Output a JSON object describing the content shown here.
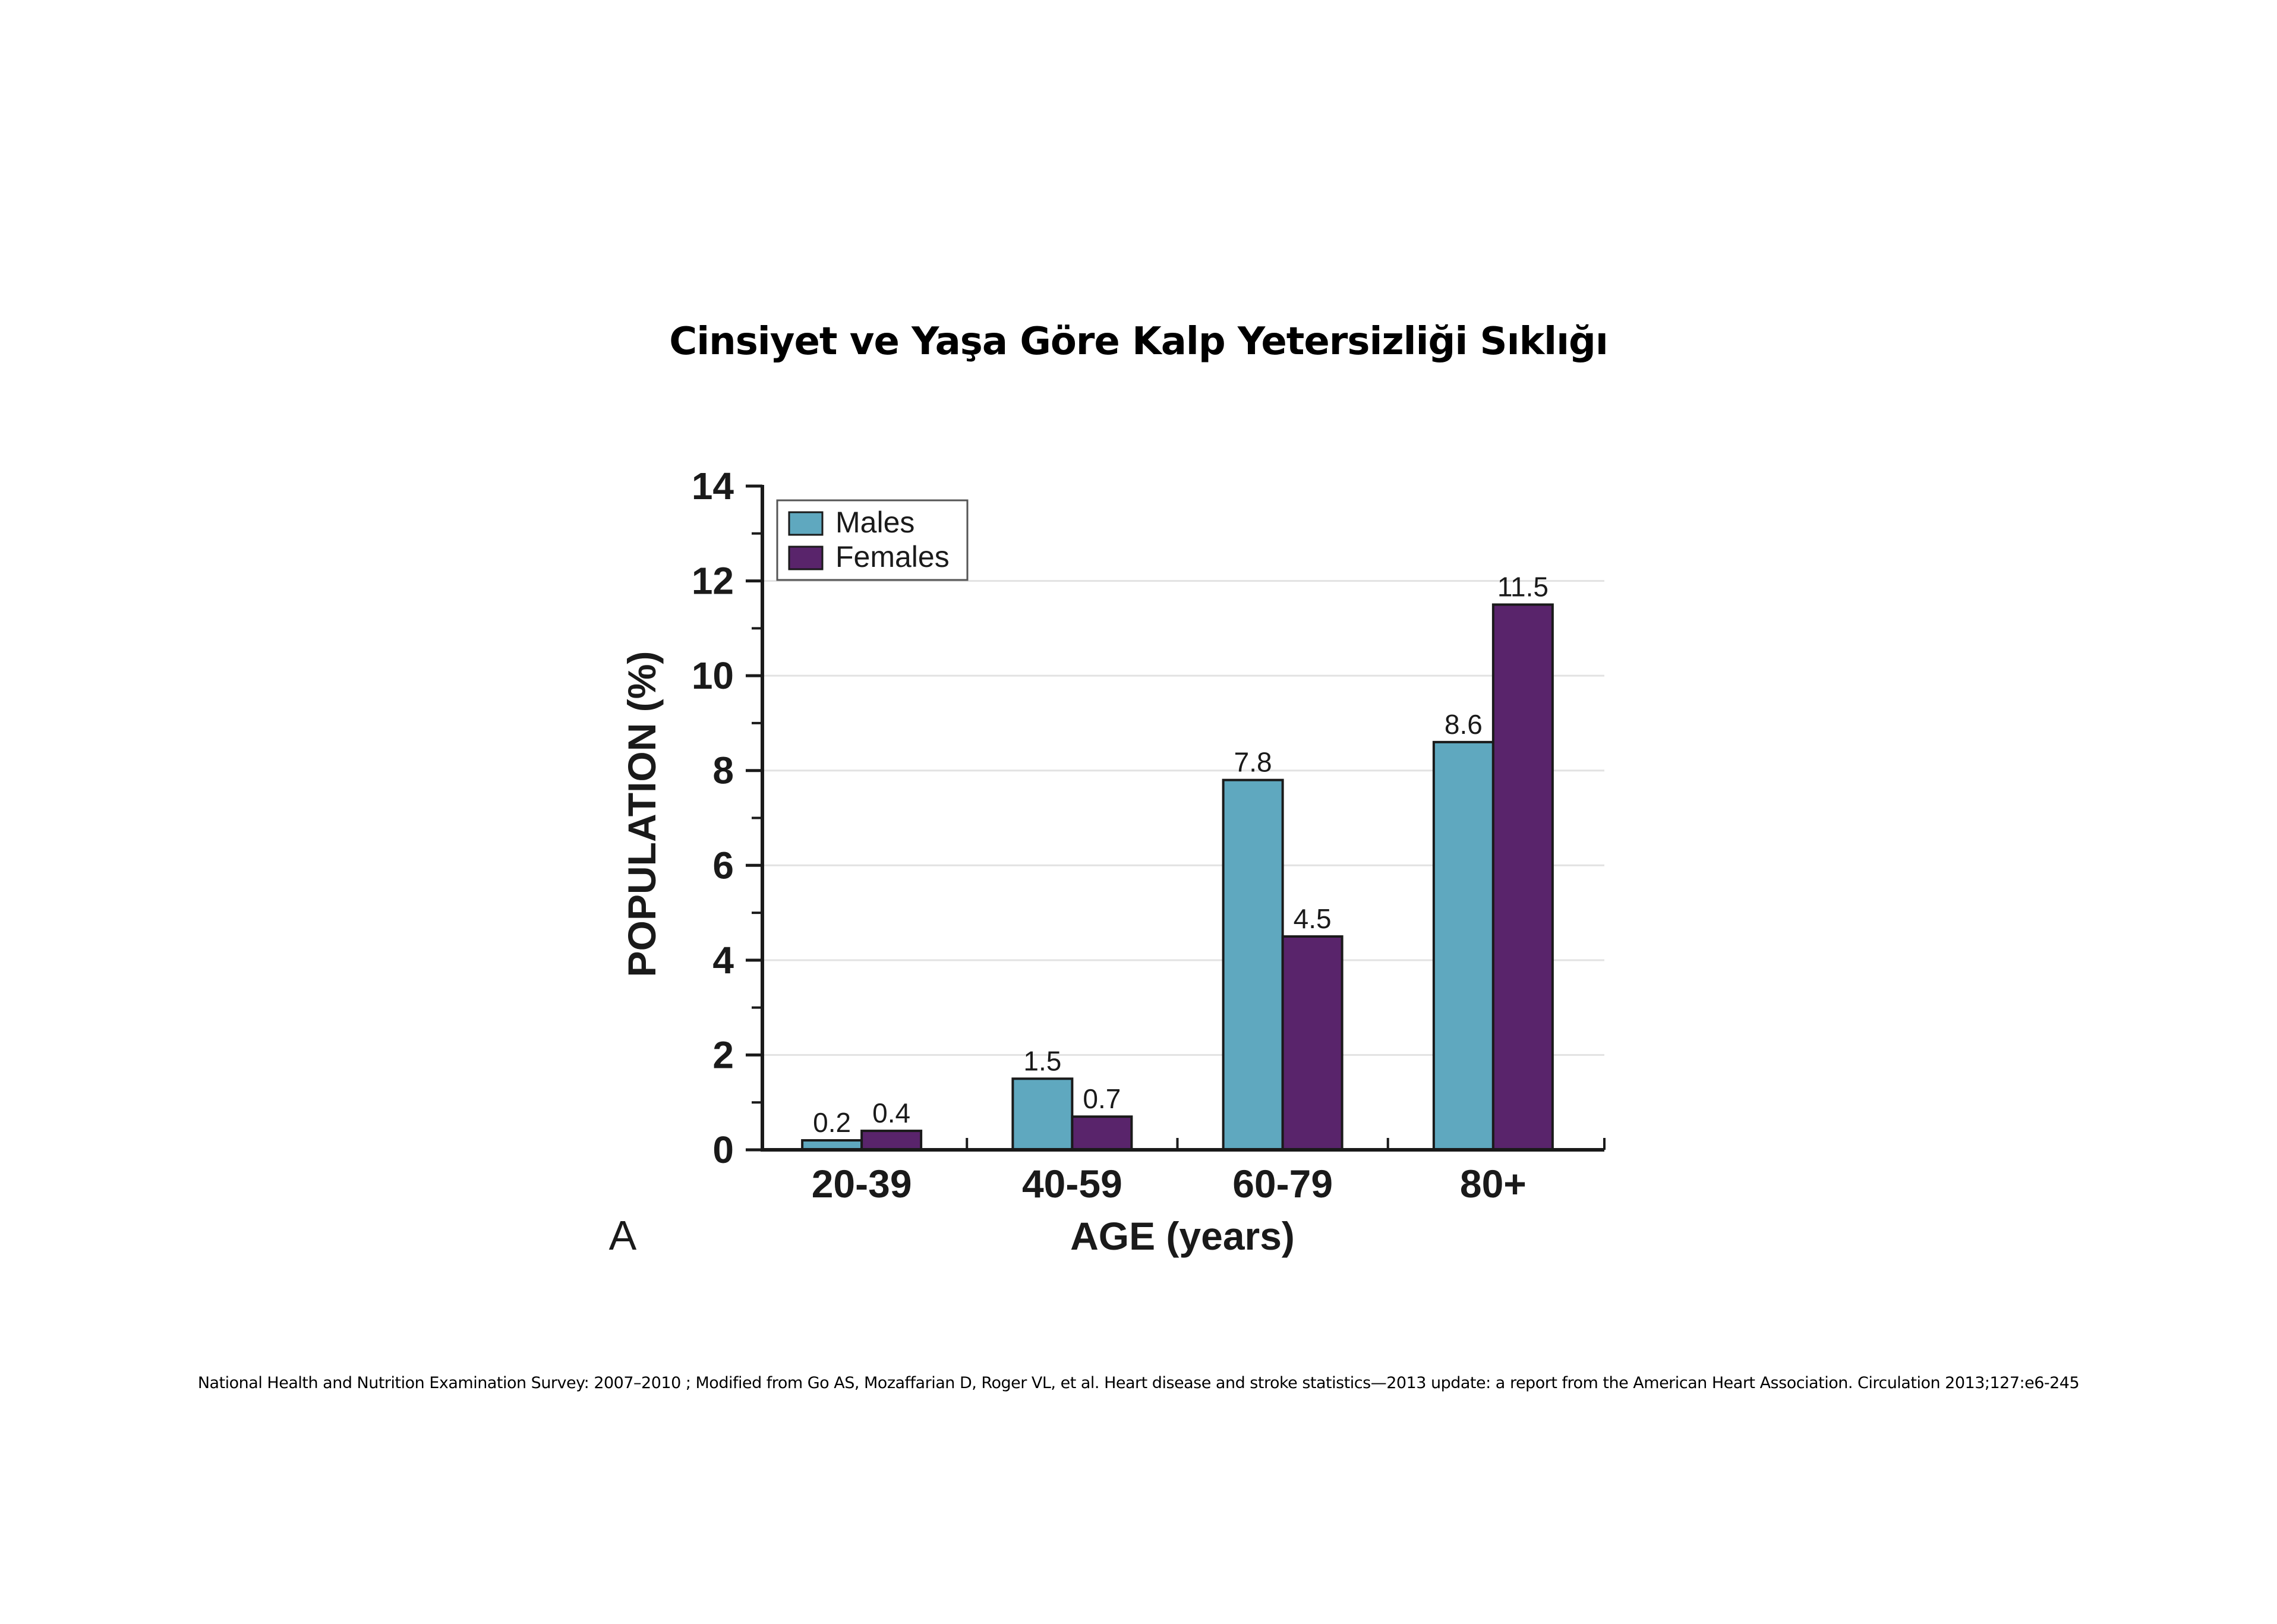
{
  "slide": {
    "title": "Cinsiyet ve Yaşa Göre Kalp Yetersizliği Sıklığı",
    "footnote": "National Health and Nutrition Examination Survey: 2007–2010 ; Modified from Go AS, Mozaffarian D, Roger VL, et al. Heart disease and stroke statistics—2013 update: a report from the American Heart Association. Circulation 2013;127:e6-245",
    "panel_label": "A"
  },
  "chart_data": {
    "type": "bar",
    "title": "",
    "xlabel": "AGE (years)",
    "ylabel": "POPULATION (%)",
    "categories": [
      "20-39",
      "40-59",
      "60-79",
      "80+"
    ],
    "series": [
      {
        "name": "Males",
        "color": "#5fa8bf",
        "values": [
          0.2,
          1.5,
          7.8,
          8.6
        ]
      },
      {
        "name": "Females",
        "color": "#59246b",
        "values": [
          0.4,
          0.7,
          4.5,
          11.5
        ]
      }
    ],
    "ylim": [
      0,
      14
    ],
    "yticks": [
      0,
      2,
      4,
      6,
      8,
      10,
      12,
      14
    ],
    "grid": true,
    "legend_position": "top-left"
  }
}
